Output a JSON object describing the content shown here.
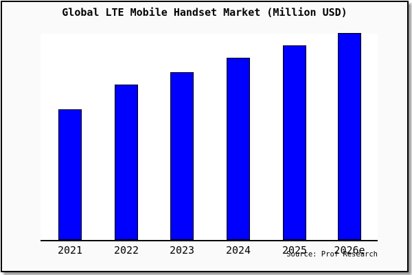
{
  "title": "Global LTE Mobile Handset Market (Million USD)",
  "source_credit": "Source: Prof Research",
  "colors": {
    "bar_fill": "#0000FF",
    "bar_edge": "#000000",
    "plot_background": "#FFFFFF",
    "frame_background": "#FAFAFA",
    "frame_border": "#000000",
    "axis_line": "#000000"
  },
  "chart_data": {
    "type": "bar",
    "title": "Global LTE Mobile Handset Market (Million USD)",
    "categories": [
      "2021",
      "2022",
      "2023",
      "2024",
      "2025",
      "2026e"
    ],
    "values": [
      63,
      75,
      81,
      88,
      94,
      100
    ],
    "values_note": "relative bar heights in % of tallest bar; chart shows no y-axis scale or data labels",
    "xlabel": "",
    "ylabel": "",
    "ylim": [
      0,
      100
    ],
    "grid": false,
    "legend": false,
    "bar_color": "#0000FF",
    "bar_edge_color": "#000000"
  }
}
